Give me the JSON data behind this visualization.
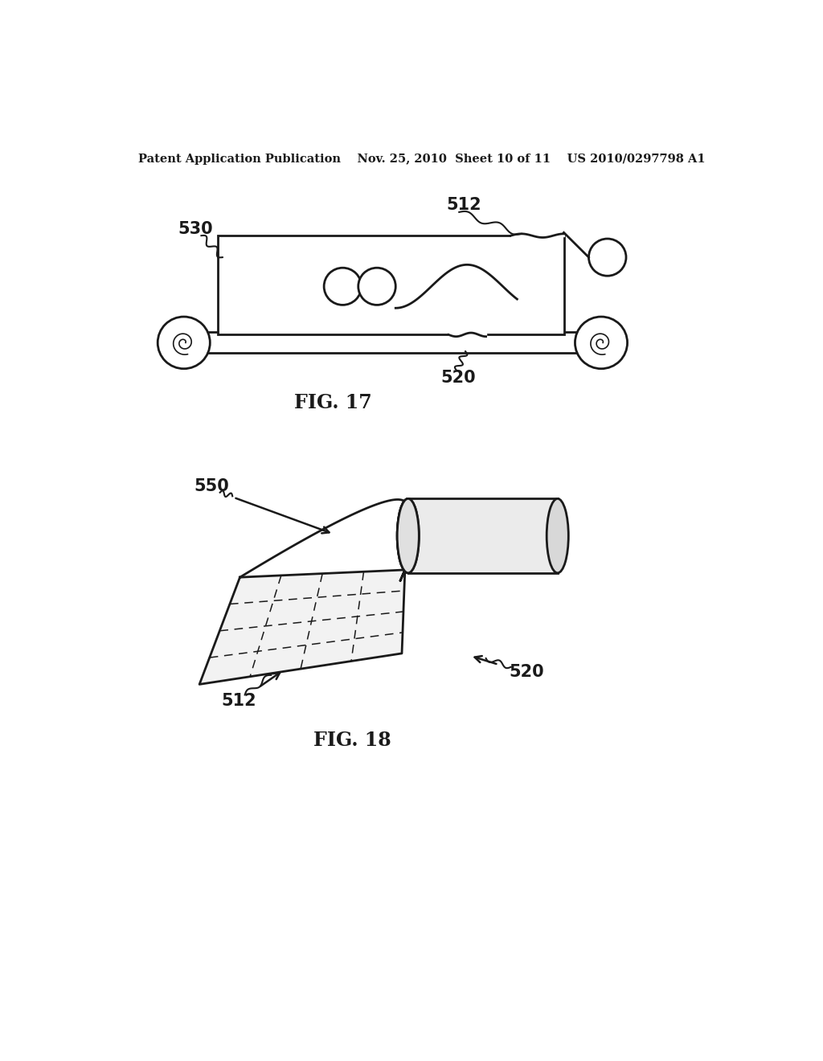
{
  "bg_color": "#ffffff",
  "line_color": "#1a1a1a",
  "header_text": "Patent Application Publication    Nov. 25, 2010  Sheet 10 of 11    US 2010/0297798 A1",
  "header_fontsize": 10.5,
  "fig17_label": "FIG. 17",
  "fig18_label": "FIG. 18",
  "label_fontsize": 17,
  "annotation_fontsize": 15,
  "annotation_bold": true
}
